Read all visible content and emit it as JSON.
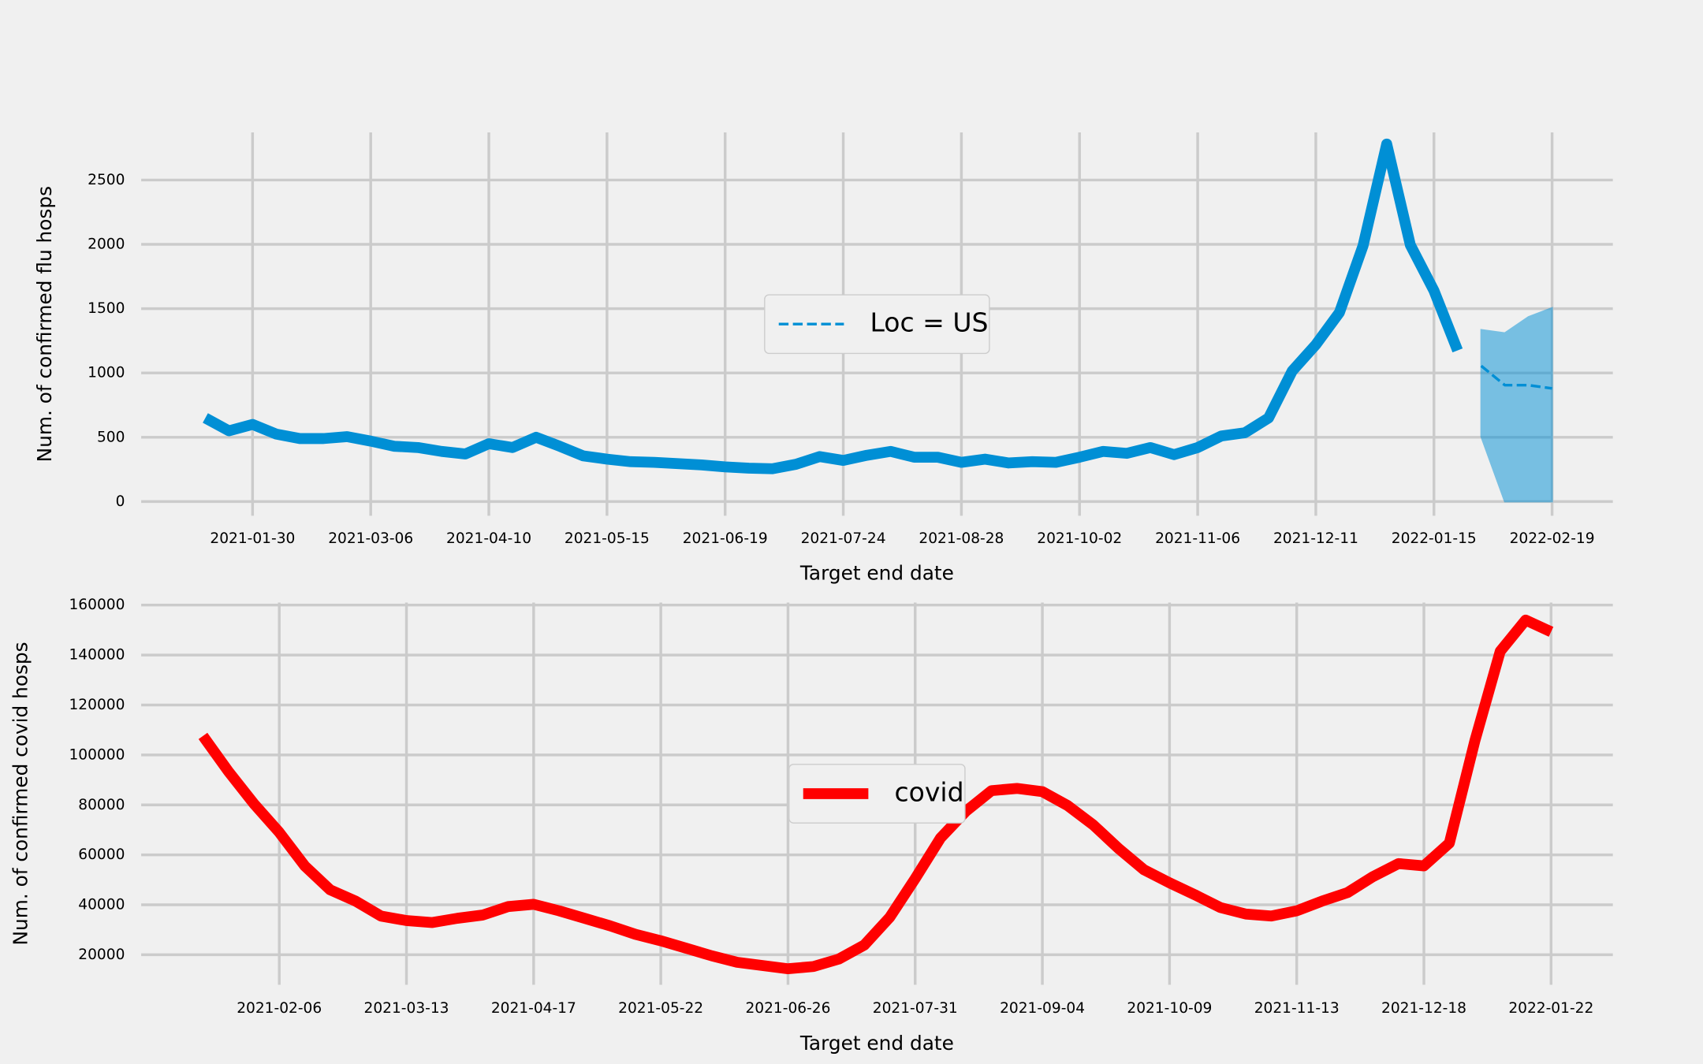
{
  "chart_data": [
    {
      "type": "line",
      "ylabel": "Num. of confirmed flu hosps",
      "xlabel": "Target end date",
      "xlim": [
        "2020-12-28",
        "2022-03-09"
      ],
      "ylim": [
        -110,
        2870
      ],
      "xticks": [
        "2021-01-30",
        "2021-03-06",
        "2021-04-10",
        "2021-05-15",
        "2021-06-19",
        "2021-07-24",
        "2021-08-28",
        "2021-10-02",
        "2021-11-06",
        "2021-12-11",
        "2022-01-15",
        "2022-02-19"
      ],
      "yticks": [
        0,
        500,
        1000,
        1500,
        2000,
        2500
      ],
      "grid": true,
      "legend": "center",
      "series": [
        {
          "color": "#008fd5",
          "style": "solid",
          "x": [
            "2021-01-16",
            "2021-01-23",
            "2021-01-30",
            "2021-02-06",
            "2021-02-13",
            "2021-02-20",
            "2021-02-27",
            "2021-03-06",
            "2021-03-13",
            "2021-03-20",
            "2021-03-27",
            "2021-04-03",
            "2021-04-10",
            "2021-04-17",
            "2021-04-24",
            "2021-05-01",
            "2021-05-08",
            "2021-05-15",
            "2021-05-22",
            "2021-05-29",
            "2021-06-05",
            "2021-06-12",
            "2021-06-19",
            "2021-06-26",
            "2021-07-03",
            "2021-07-10",
            "2021-07-17",
            "2021-07-24",
            "2021-07-31",
            "2021-08-07",
            "2021-08-14",
            "2021-08-21",
            "2021-08-28",
            "2021-09-04",
            "2021-09-11",
            "2021-09-18",
            "2021-09-25",
            "2021-10-02",
            "2021-10-09",
            "2021-10-16",
            "2021-10-23",
            "2021-10-30",
            "2021-11-06",
            "2021-11-13",
            "2021-11-20",
            "2021-11-27",
            "2021-12-04",
            "2021-12-11",
            "2021-12-18",
            "2021-12-25",
            "2022-01-01",
            "2022-01-08",
            "2022-01-15",
            "2022-01-22"
          ],
          "values": [
            650,
            550,
            600,
            525,
            490,
            490,
            505,
            470,
            430,
            420,
            390,
            370,
            450,
            420,
            500,
            430,
            355,
            330,
            310,
            305,
            295,
            285,
            270,
            260,
            255,
            290,
            350,
            320,
            360,
            390,
            345,
            345,
            305,
            330,
            300,
            310,
            305,
            345,
            390,
            375,
            420,
            365,
            420,
            510,
            535,
            650,
            1015,
            1220,
            1470,
            1990,
            2780,
            1995,
            1640,
            1175
          ]
        },
        {
          "name": "Loc = US",
          "color": "#008fd5",
          "style": "dashed",
          "x": [
            "2022-01-29",
            "2022-02-05",
            "2022-02-12",
            "2022-02-19"
          ],
          "values": [
            1055,
            905,
            905,
            880
          ],
          "lower": [
            505,
            0,
            0,
            0
          ],
          "upper": [
            1335,
            1310,
            1435,
            1505
          ]
        }
      ]
    },
    {
      "type": "line",
      "ylabel": "Num. of confirmed covid hosps",
      "xlabel": "Target end date",
      "xlim": [
        "2020-12-30",
        "2022-02-08"
      ],
      "ylim": [
        8000,
        161000
      ],
      "xticks": [
        "2021-02-06",
        "2021-03-13",
        "2021-04-17",
        "2021-05-22",
        "2021-06-26",
        "2021-07-31",
        "2021-09-04",
        "2021-10-09",
        "2021-11-13",
        "2021-12-18",
        "2022-01-22"
      ],
      "yticks": [
        20000,
        40000,
        60000,
        80000,
        100000,
        120000,
        140000,
        160000
      ],
      "grid": true,
      "legend": "center",
      "series": [
        {
          "name": "covid",
          "color": "#ff0000",
          "style": "solid",
          "x": [
            "2021-01-16",
            "2021-01-23",
            "2021-01-30",
            "2021-02-06",
            "2021-02-13",
            "2021-02-20",
            "2021-02-27",
            "2021-03-06",
            "2021-03-13",
            "2021-03-20",
            "2021-03-27",
            "2021-04-03",
            "2021-04-10",
            "2021-04-17",
            "2021-04-24",
            "2021-05-01",
            "2021-05-08",
            "2021-05-15",
            "2021-05-22",
            "2021-05-29",
            "2021-06-05",
            "2021-06-12",
            "2021-06-19",
            "2021-06-26",
            "2021-07-03",
            "2021-07-10",
            "2021-07-17",
            "2021-07-24",
            "2021-07-31",
            "2021-08-07",
            "2021-08-14",
            "2021-08-21",
            "2021-08-28",
            "2021-09-04",
            "2021-09-11",
            "2021-09-18",
            "2021-09-25",
            "2021-10-02",
            "2021-10-09",
            "2021-10-16",
            "2021-10-23",
            "2021-10-30",
            "2021-11-06",
            "2021-11-13",
            "2021-11-20",
            "2021-11-27",
            "2021-12-04",
            "2021-12-11",
            "2021-12-18",
            "2021-12-25",
            "2022-01-01",
            "2022-01-08",
            "2022-01-15",
            "2022-01-22"
          ],
          "values": [
            107600,
            93400,
            80500,
            69000,
            55600,
            46000,
            41500,
            35500,
            33700,
            32900,
            34600,
            35900,
            39300,
            40200,
            37600,
            34600,
            31600,
            28200,
            25600,
            22600,
            19600,
            17000,
            15700,
            14400,
            15300,
            18300,
            23900,
            35000,
            50500,
            66800,
            77500,
            85700,
            86600,
            85300,
            79700,
            72000,
            62500,
            54000,
            48800,
            44000,
            38900,
            36300,
            35500,
            37600,
            41500,
            44900,
            51300,
            56500,
            55600,
            64700,
            105500,
            141500,
            154000,
            149300
          ]
        }
      ]
    }
  ]
}
